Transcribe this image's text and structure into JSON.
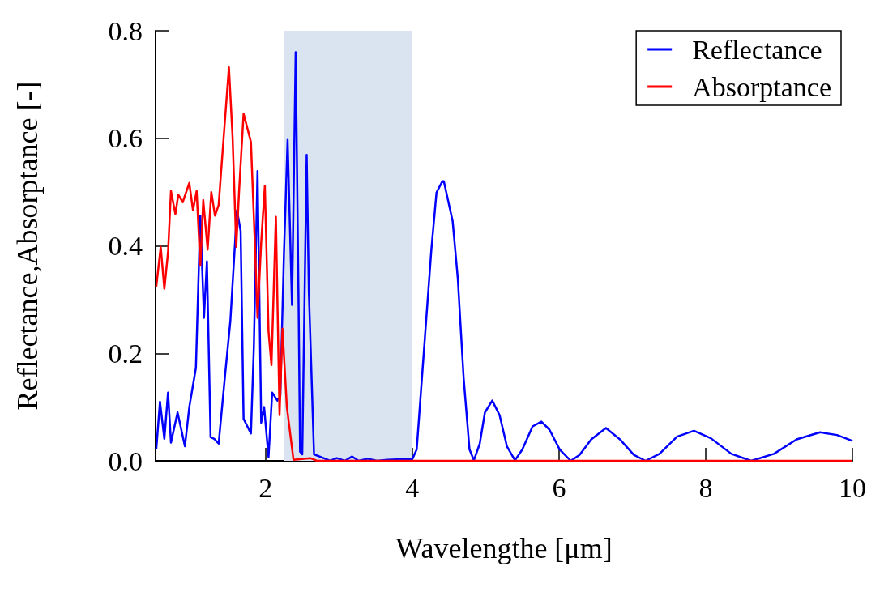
{
  "chart_data": {
    "type": "line",
    "xlabel": "Wavelengthe [μm]",
    "ylabel": "Reflectance,Absorptance [-]",
    "xlim": [
      0.5,
      10
    ],
    "xticks": [
      2,
      4,
      6,
      8,
      10
    ],
    "ylim": [
      0,
      0.8
    ],
    "yticks": [
      {
        "value": 0,
        "label": "0.0"
      },
      {
        "value": 0.2,
        "label": "0.2"
      },
      {
        "value": 0.4,
        "label": "0.4"
      },
      {
        "value": 0.6,
        "label": "0.6"
      },
      {
        "value": 0.8,
        "label": "0.8"
      }
    ],
    "grid": false,
    "legend": "top right",
    "marker": "none",
    "line_style": "solid",
    "bands": [
      {
        "axis": "x",
        "from": 2.25,
        "to": 4.0,
        "color": "#dae3f0"
      }
    ],
    "series": [
      {
        "name": "Reflectance",
        "color": "#0000ff",
        "x": [
          0.51,
          0.56,
          0.62,
          0.67,
          0.71,
          0.8,
          0.9,
          0.96,
          1.05,
          1.11,
          1.16,
          1.2,
          1.25,
          1.3,
          1.36,
          1.45,
          1.52,
          1.61,
          1.66,
          1.7,
          1.8,
          1.84,
          1.89,
          1.94,
          1.98,
          2.04,
          2.09,
          2.16,
          2.2,
          2.25,
          2.3,
          2.36,
          2.41,
          2.45,
          2.47,
          2.5,
          2.56,
          2.59,
          2.66,
          2.79,
          2.88,
          2.97,
          3.08,
          3.18,
          3.27,
          3.39,
          3.52,
          3.66,
          3.86,
          4.0,
          4.06,
          4.16,
          4.26,
          4.33,
          4.41,
          4.43,
          4.55,
          4.62,
          4.7,
          4.78,
          4.84,
          4.92,
          4.99,
          5.09,
          5.19,
          5.29,
          5.4,
          5.5,
          5.64,
          5.76,
          5.87,
          6.01,
          6.16,
          6.28,
          6.44,
          6.64,
          6.83,
          7.02,
          7.18,
          7.37,
          7.61,
          7.84,
          8.07,
          8.35,
          8.62,
          8.93,
          9.24,
          9.56,
          9.79,
          10.0
        ],
        "values": [
          0.022,
          0.11,
          0.041,
          0.127,
          0.034,
          0.09,
          0.027,
          0.1,
          0.173,
          0.456,
          0.266,
          0.371,
          0.044,
          0.041,
          0.032,
          0.163,
          0.261,
          0.466,
          0.427,
          0.078,
          0.051,
          0.212,
          0.539,
          0.071,
          0.1,
          0.007,
          0.127,
          0.112,
          0.12,
          0.384,
          0.597,
          0.29,
          0.76,
          0.29,
          0.017,
          0.012,
          0.569,
          0.314,
          0.012,
          0.005,
          0.0,
          0.005,
          0.0,
          0.008,
          0.0,
          0.004,
          0.0,
          0.002,
          0.003,
          0.003,
          0.021,
          0.207,
          0.393,
          0.499,
          0.52,
          0.52,
          0.446,
          0.34,
          0.154,
          0.021,
          0.001,
          0.032,
          0.09,
          0.112,
          0.085,
          0.027,
          0.001,
          0.021,
          0.064,
          0.073,
          0.058,
          0.021,
          0.0,
          0.011,
          0.04,
          0.061,
          0.04,
          0.011,
          0.0,
          0.013,
          0.045,
          0.056,
          0.042,
          0.013,
          0.0,
          0.013,
          0.04,
          0.053,
          0.048,
          0.037
        ]
      },
      {
        "name": "Absorptance",
        "color": "#ff0000",
        "x": [
          0.51,
          0.57,
          0.62,
          0.67,
          0.71,
          0.77,
          0.81,
          0.87,
          0.96,
          1.01,
          1.06,
          1.11,
          1.15,
          1.21,
          1.26,
          1.31,
          1.36,
          1.41,
          1.5,
          1.55,
          1.6,
          1.64,
          1.7,
          1.8,
          1.85,
          1.89,
          1.94,
          1.99,
          2.04,
          2.08,
          2.14,
          2.19,
          2.23,
          2.29,
          2.38,
          2.61,
          2.7,
          10.0
        ],
        "values": [
          0.324,
          0.398,
          0.32,
          0.388,
          0.502,
          0.459,
          0.495,
          0.481,
          0.517,
          0.466,
          0.502,
          0.363,
          0.485,
          0.393,
          0.5,
          0.456,
          0.476,
          0.568,
          0.732,
          0.602,
          0.398,
          0.505,
          0.646,
          0.593,
          0.417,
          0.266,
          0.407,
          0.512,
          0.241,
          0.178,
          0.454,
          0.085,
          0.246,
          0.1,
          0.002,
          0.005,
          0.0,
          0.0
        ]
      }
    ]
  }
}
